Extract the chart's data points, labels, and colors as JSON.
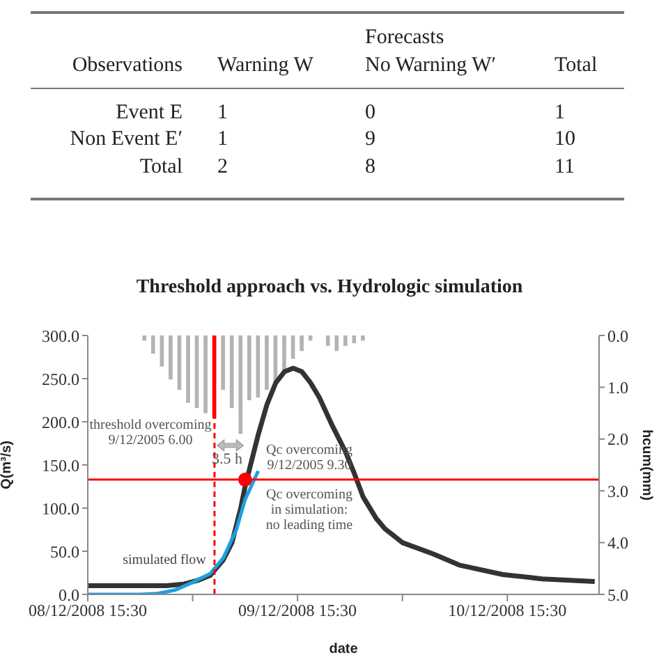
{
  "chart_data": [
    {
      "type": "heatmap",
      "xlabel": "Forecasts",
      "ylabel": "Observations",
      "categories": [
        "Warning W",
        "No Warning W′",
        "Total"
      ],
      "y_categories": [
        "Event E",
        "Non Event E′",
        "Total"
      ],
      "data_labels": true,
      "cells": [
        [
          1,
          0,
          1
        ],
        [
          1,
          9,
          10
        ],
        [
          2,
          8,
          11
        ]
      ]
    },
    {
      "type": "line",
      "title": "Threshold approach vs. Hydrologic simulation",
      "xlabel": "date",
      "ylabel": "Q(m³/s)",
      "y2label": "hcum(mm)",
      "xlim": [
        "2008-12-08T15:30",
        "2008-12-11T02:00"
      ],
      "xticks": [
        {
          "value": "2008-12-08T15:30",
          "label": "08/12/2008 15:30"
        },
        {
          "value": "2008-12-09T03:30",
          "label": null
        },
        {
          "value": "2008-12-09T15:30",
          "label": "09/12/2008 15:30"
        },
        {
          "value": "2008-12-10T03:30",
          "label": null
        },
        {
          "value": "2008-12-10T15:30",
          "label": "10/12/2008 15:30"
        }
      ],
      "ylim": [
        0,
        300
      ],
      "yticks": [
        {
          "value": 0,
          "label": "0.0"
        },
        {
          "value": 50,
          "label": "50.0"
        },
        {
          "value": 100,
          "label": "100.0"
        },
        {
          "value": 150,
          "label": "150.0"
        },
        {
          "value": 200,
          "label": "200.0"
        },
        {
          "value": 250,
          "label": "250.0"
        },
        {
          "value": 300,
          "label": "300.0"
        }
      ],
      "y2lim": [
        5,
        0
      ],
      "y2ticks": [
        {
          "value": 0,
          "label": "0.0"
        },
        {
          "value": 1,
          "label": "1.0"
        },
        {
          "value": 2,
          "label": "2.0"
        },
        {
          "value": 3,
          "label": "3.0"
        },
        {
          "value": 4,
          "label": "4.0"
        },
        {
          "value": 5,
          "label": "5.0"
        }
      ],
      "series": [
        {
          "type": "bar",
          "axis": "y2",
          "color": "#b3b3b3",
          "x": [
            "2008-12-08T22:00",
            "2008-12-08T23:00",
            "2008-12-09T00:00",
            "2008-12-09T01:00",
            "2008-12-09T02:00",
            "2008-12-09T03:00",
            "2008-12-09T04:00",
            "2008-12-09T05:00",
            "2008-12-09T06:00",
            "2008-12-09T07:00",
            "2008-12-09T08:00",
            "2008-12-09T09:00",
            "2008-12-09T10:00",
            "2008-12-09T11:00",
            "2008-12-09T12:00",
            "2008-12-09T13:00",
            "2008-12-09T14:00",
            "2008-12-09T15:00",
            "2008-12-09T16:00",
            "2008-12-09T17:00",
            "2008-12-09T19:00",
            "2008-12-09T20:00",
            "2008-12-09T21:00",
            "2008-12-09T22:00",
            "2008-12-09T23:00"
          ],
          "values": [
            0.1,
            0.35,
            0.6,
            0.85,
            1.05,
            1.3,
            1.4,
            1.5,
            1.6,
            1.05,
            1.4,
            1.9,
            1.25,
            1.2,
            1.05,
            0.95,
            0.7,
            0.45,
            0.3,
            0.1,
            0.2,
            0.3,
            0.2,
            0.15,
            0.1
          ],
          "colors": [
            "#b3b3b3",
            "#b3b3b3",
            "#b3b3b3",
            "#b3b3b3",
            "#b3b3b3",
            "#b3b3b3",
            "#b3b3b3",
            "#b3b3b3",
            "#ff0000",
            "#b3b3b3",
            "#b3b3b3",
            "#b3b3b3",
            "#b3b3b3",
            "#b3b3b3",
            "#b3b3b3",
            "#b3b3b3",
            "#b3b3b3",
            "#b3b3b3",
            "#b3b3b3",
            "#b3b3b3",
            "#b3b3b3",
            "#b3b3b3",
            "#b3b3b3",
            "#b3b3b3",
            "#b3b3b3"
          ]
        },
        {
          "type": "line",
          "color": "#333333",
          "x": [
            "2008-12-08T15:30",
            "2008-12-08T21:30",
            "2008-12-09T00:30",
            "2008-12-09T02:30",
            "2008-12-09T04:00",
            "2008-12-09T05:30",
            "2008-12-09T07:00",
            "2008-12-09T08:00",
            "2008-12-09T09:00",
            "2008-12-09T09:30",
            "2008-12-09T10:00",
            "2008-12-09T11:00",
            "2008-12-09T12:00",
            "2008-12-09T13:00",
            "2008-12-09T14:00",
            "2008-12-09T15:00",
            "2008-12-09T16:00",
            "2008-12-09T17:00",
            "2008-12-09T18:00",
            "2008-12-09T19:30",
            "2008-12-09T21:00",
            "2008-12-09T22:00",
            "2008-12-09T23:00",
            "2008-12-10T00:30",
            "2008-12-10T01:30",
            "2008-12-10T03:30",
            "2008-12-10T07:00",
            "2008-12-10T10:00",
            "2008-12-10T15:00",
            "2008-12-10T19:30",
            "2008-12-11T01:30"
          ],
          "values": [
            10,
            10,
            10,
            12,
            16,
            22,
            40,
            60,
            100,
            125,
            145,
            185,
            220,
            245,
            258,
            262,
            258,
            245,
            228,
            195,
            165,
            140,
            113,
            88,
            76,
            60,
            47,
            34,
            23,
            18,
            15
          ]
        },
        {
          "type": "line",
          "name": "simulated flow",
          "color": "#1ba1e2",
          "x": [
            "2008-12-08T15:30",
            "2008-12-08T21:30",
            "2008-12-08T23:30",
            "2008-12-09T01:30",
            "2008-12-09T03:30",
            "2008-12-09T05:30",
            "2008-12-09T07:00",
            "2008-12-09T08:30",
            "2008-12-09T09:30",
            "2008-12-09T11:00"
          ],
          "values": [
            0,
            0,
            1,
            5,
            14,
            24,
            42,
            75,
            110,
            143
          ]
        },
        {
          "type": "scatter",
          "color": "#ff0000",
          "marker": "circle",
          "x": [
            "2008-12-09T09:30"
          ],
          "values": [
            133
          ]
        }
      ],
      "ref_lines": [
        {
          "axis": "x",
          "value": "2008-12-09T06:00",
          "color": "#ff0000",
          "line_style": "dashed"
        },
        {
          "axis": "y",
          "value": 133,
          "color": "#ff0000",
          "line_style": "solid"
        }
      ],
      "annotations": [
        "threshold overcoming\n9/12/2005 6.00",
        "3.5 h",
        "Qc overcoming\n9/12/2005 9.30",
        "Qc overcoming\nin simulation:\nno leading time"
      ]
    }
  ]
}
